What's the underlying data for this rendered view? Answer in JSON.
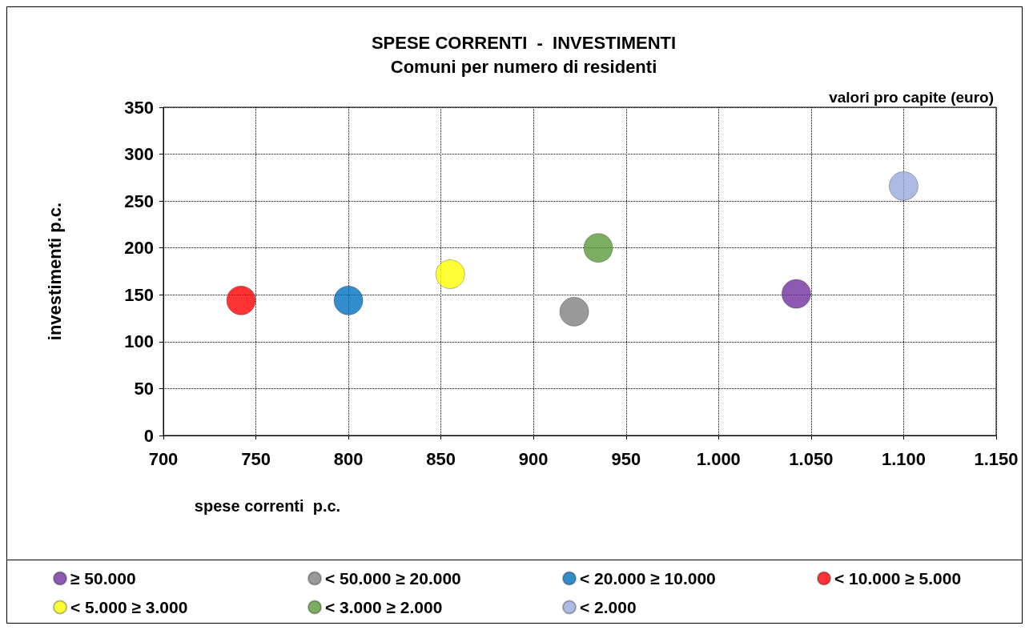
{
  "chart_data": {
    "type": "scatter",
    "title": "SPESE CORRENTI  -  INVESTIMENTI",
    "subtitle": "Comuni per numero di residenti",
    "annotations": [
      "valori pro capite (euro)"
    ],
    "xlabel": "spese correnti  p.c.",
    "ylabel": "investimenti p.c.",
    "xlim": [
      700,
      1150
    ],
    "xticks": [
      700,
      750,
      800,
      850,
      900,
      950,
      {
        "value": 1000,
        "label": "1.000"
      },
      {
        "value": 1050,
        "label": "1.050"
      },
      {
        "value": 1100,
        "label": "1.100"
      },
      {
        "value": 1150,
        "label": "1.150"
      }
    ],
    "ylim": [
      0,
      350
    ],
    "yticks": [
      0,
      50,
      100,
      150,
      200,
      250,
      300,
      350
    ],
    "grid": true,
    "legend": "bottom",
    "marker": "circle",
    "series": [
      {
        "name": "≥ 50.000",
        "color": "#7030a0",
        "x": [
          1042
        ],
        "values": [
          151
        ]
      },
      {
        "name": "< 50.000 ≥ 20.000",
        "color": "#808080",
        "x": [
          922
        ],
        "values": [
          132
        ]
      },
      {
        "name": "< 20.000 ≥ 10.000",
        "color": "#0070c0",
        "x": [
          800
        ],
        "values": [
          144
        ]
      },
      {
        "name": "< 10.000 ≥ 5.000",
        "color": "#ff0000",
        "x": [
          742
        ],
        "values": [
          144
        ]
      },
      {
        "name": "< 5.000 ≥ 3.000",
        "color": "#ffff00",
        "x": [
          855
        ],
        "values": [
          172
        ]
      },
      {
        "name": "< 3.000 ≥ 2.000",
        "color": "#5b9a3a",
        "x": [
          935
        ],
        "values": [
          200
        ]
      },
      {
        "name": "< 2.000",
        "color": "#98a9dc",
        "x": [
          1100
        ],
        "values": [
          266
        ]
      }
    ]
  }
}
